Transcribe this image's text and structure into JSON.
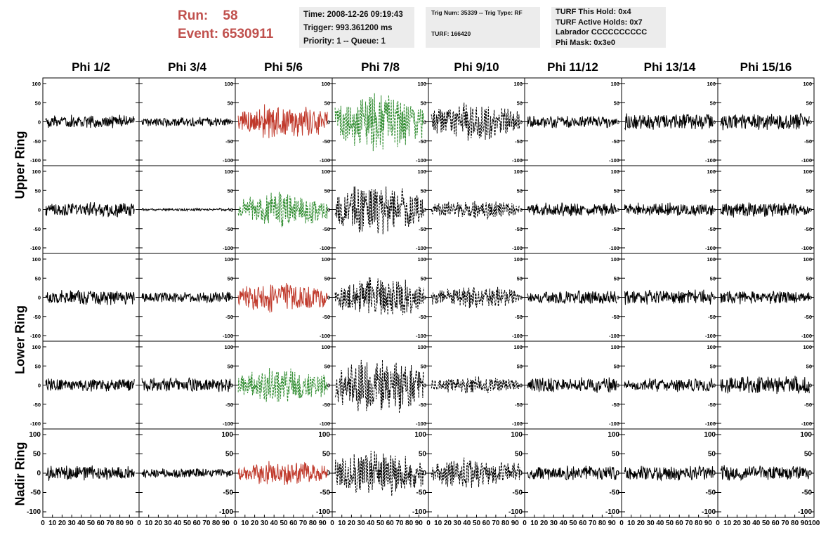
{
  "header": {
    "run_label": "Run:",
    "run_value": "58",
    "event_label": "Event:",
    "event_value": "6530911",
    "box1": [
      "Time: 2008-12-26 09:19:43",
      "Trigger: 993.361200 ms",
      "Priority: 1 -- Queue: 1"
    ],
    "box2": [
      "Trig Num: 35339 -- Trig Type: RF",
      "TURF: 166420"
    ],
    "box3": [
      "TURF This Hold: 0x4",
      "TURF Active Holds: 0x7",
      "Labrador CCCCCCCCCC",
      "Phi Mask: 0x3e0"
    ]
  },
  "columns": [
    "Phi 1/2",
    "Phi 3/4",
    "Phi 5/6",
    "Phi 7/8",
    "Phi 9/10",
    "Phi 11/12",
    "Phi 13/14",
    "Phi 15/16"
  ],
  "rings": [
    "Upper Ring",
    "Lower Ring",
    "Nadir Ring"
  ],
  "colors": {
    "trace_default": "#000000",
    "trace_red": "#c0392b",
    "trace_green": "#2e8b2e"
  },
  "chart_data": {
    "type": "line",
    "xlim": [
      0,
      100
    ],
    "ylim": [
      -100,
      100
    ],
    "x_ticks": [
      0,
      10,
      20,
      30,
      40,
      50,
      60,
      70,
      80,
      90,
      100
    ],
    "y_ticks": [
      -100,
      -50,
      0,
      50,
      100
    ],
    "grid": false,
    "rows": [
      {
        "ring": "Upper Ring",
        "cells": [
          {
            "style": "solid",
            "color": "black",
            "amp": 22
          },
          {
            "style": "solid",
            "color": "black",
            "amp": 15
          },
          {
            "style": "solid",
            "color": "red",
            "amp": 60
          },
          {
            "style": "dashed",
            "color": "green",
            "amp": 85
          },
          {
            "style": "dashed",
            "color": "black",
            "amp": 55
          },
          {
            "style": "solid",
            "color": "black",
            "amp": 20
          },
          {
            "style": "solid",
            "color": "black",
            "amp": 28
          },
          {
            "style": "solid",
            "color": "black",
            "amp": 28
          }
        ]
      },
      {
        "ring": "Upper Ring",
        "cells": [
          {
            "style": "solid",
            "color": "black",
            "amp": 25
          },
          {
            "style": "solid",
            "color": "black",
            "amp": 4
          },
          {
            "style": "dashed",
            "color": "green",
            "amp": 50
          },
          {
            "style": "dashed",
            "color": "black",
            "amp": 75
          },
          {
            "style": "dashed",
            "color": "black",
            "amp": 30
          },
          {
            "style": "solid",
            "color": "black",
            "amp": 22
          },
          {
            "style": "solid",
            "color": "black",
            "amp": 22
          },
          {
            "style": "solid",
            "color": "black",
            "amp": 25
          }
        ]
      },
      {
        "ring": "Lower Ring",
        "cells": [
          {
            "style": "solid",
            "color": "black",
            "amp": 25
          },
          {
            "style": "solid",
            "color": "black",
            "amp": 18
          },
          {
            "style": "solid",
            "color": "red",
            "amp": 55
          },
          {
            "style": "dashed",
            "color": "black",
            "amp": 60
          },
          {
            "style": "dashed",
            "color": "black",
            "amp": 35
          },
          {
            "style": "solid",
            "color": "black",
            "amp": 22
          },
          {
            "style": "solid",
            "color": "black",
            "amp": 25
          },
          {
            "style": "solid",
            "color": "black",
            "amp": 22
          }
        ]
      },
      {
        "ring": "Lower Ring",
        "cells": [
          {
            "style": "solid",
            "color": "black",
            "amp": 22
          },
          {
            "style": "solid",
            "color": "black",
            "amp": 25
          },
          {
            "style": "dashed",
            "color": "green",
            "amp": 50
          },
          {
            "style": "dashed",
            "color": "black",
            "amp": 85
          },
          {
            "style": "dashed",
            "color": "black",
            "amp": 25
          },
          {
            "style": "solid",
            "color": "black",
            "amp": 25
          },
          {
            "style": "solid",
            "color": "black",
            "amp": 22
          },
          {
            "style": "solid",
            "color": "black",
            "amp": 30
          }
        ]
      },
      {
        "ring": "Nadir Ring",
        "cells": [
          {
            "style": "solid",
            "color": "black",
            "amp": 25
          },
          {
            "style": "solid",
            "color": "black",
            "amp": 15
          },
          {
            "style": "solid",
            "color": "red",
            "amp": 40
          },
          {
            "style": "dashed",
            "color": "black",
            "amp": 65
          },
          {
            "style": "dashed",
            "color": "black",
            "amp": 45
          },
          {
            "style": "solid",
            "color": "black",
            "amp": 25
          },
          {
            "style": "solid",
            "color": "black",
            "amp": 25
          },
          {
            "style": "solid",
            "color": "black",
            "amp": 25
          }
        ]
      }
    ]
  }
}
